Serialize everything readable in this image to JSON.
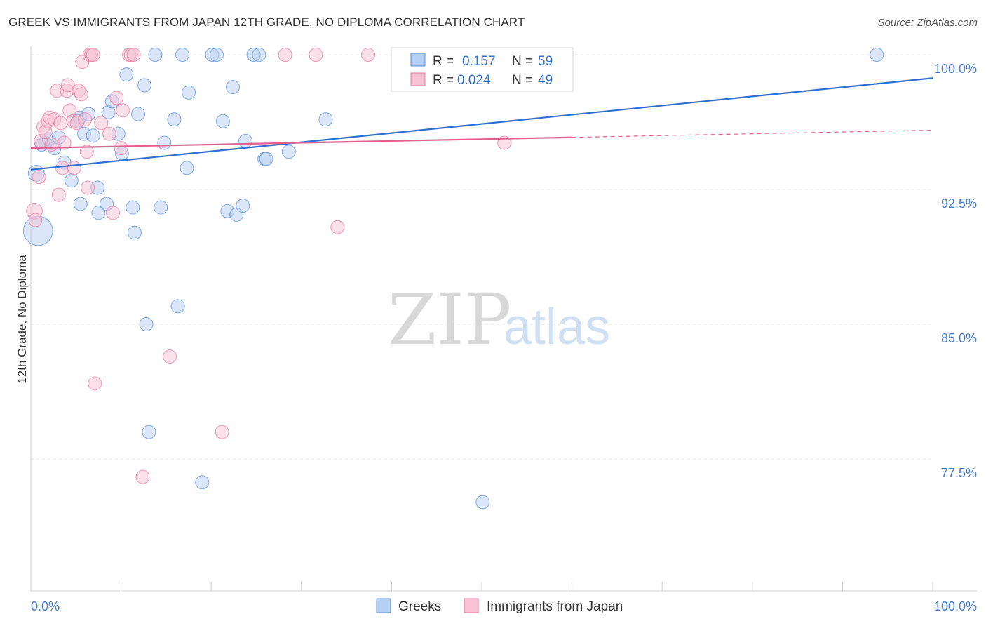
{
  "title": "GREEK VS IMMIGRANTS FROM JAPAN 12TH GRADE, NO DIPLOMA CORRELATION CHART",
  "source": "Source: ZipAtlas.com",
  "watermark": {
    "zip": "ZIP",
    "atlas": "atlas"
  },
  "colors": {
    "greeks": "#5b8fdb",
    "greeks_fill": "#b7cff2",
    "japan": "#e87aa0",
    "japan_fill": "#f6c2d4",
    "greeks_line": "#2f6fcf",
    "japan_line": "#e0608e"
  },
  "legend": {
    "r_label": "R =",
    "n_label": "N =",
    "greeks": {
      "r": "0.157",
      "n": "59"
    },
    "japan": {
      "r": "0.024",
      "n": "49"
    }
  },
  "chart_data": {
    "type": "scatter",
    "ylabel": "12th Grade, No Diploma",
    "xlim": [
      0,
      100
    ],
    "ylim": [
      71.5,
      100.7
    ],
    "x_ticks": [
      {
        "v": 0,
        "label": "0.0%"
      },
      {
        "v": 100,
        "label": "100.0%"
      }
    ],
    "y_ticks": [
      {
        "v": 100,
        "label": "100.0%"
      },
      {
        "v": 92.5,
        "label": "92.5%"
      },
      {
        "v": 85,
        "label": "85.0%"
      },
      {
        "v": 77.5,
        "label": "77.5%"
      }
    ],
    "grid": true,
    "legend_position": "top-center",
    "series": [
      {
        "name": "Greeks",
        "trend": {
          "x0": 0,
          "y0": 93.6,
          "x1": 100,
          "y1": 98.7,
          "dashed_from": null
        },
        "points": [
          [
            0.6,
            93.4,
            12
          ],
          [
            0.8,
            90.2,
            22
          ],
          [
            1.2,
            95.0,
            10
          ],
          [
            1.6,
            95.1,
            10
          ],
          [
            2.0,
            95.3,
            10
          ],
          [
            2.6,
            94.8,
            10
          ],
          [
            3.1,
            95.4,
            10
          ],
          [
            3.7,
            94.0,
            10
          ],
          [
            4.5,
            93.0,
            10
          ],
          [
            5.2,
            96.3,
            10
          ],
          [
            5.4,
            96.5,
            10
          ],
          [
            5.5,
            91.7,
            10
          ],
          [
            5.9,
            95.6,
            10
          ],
          [
            6.4,
            96.7,
            10
          ],
          [
            6.9,
            95.5,
            10
          ],
          [
            7.4,
            92.6,
            10
          ],
          [
            7.5,
            91.2,
            10
          ],
          [
            8.4,
            91.7,
            10
          ],
          [
            8.6,
            96.8,
            10
          ],
          [
            9.0,
            97.4,
            10
          ],
          [
            9.7,
            95.6,
            10
          ],
          [
            10.1,
            94.5,
            10
          ],
          [
            10.6,
            98.9,
            10
          ],
          [
            11.3,
            91.5,
            10
          ],
          [
            11.5,
            90.1,
            10
          ],
          [
            11.9,
            96.7,
            10
          ],
          [
            12.6,
            98.3,
            10
          ],
          [
            12.8,
            85.0,
            10
          ],
          [
            13.1,
            79.0,
            10
          ],
          [
            13.8,
            100.0,
            10
          ],
          [
            14.4,
            91.5,
            10
          ],
          [
            14.8,
            95.1,
            10
          ],
          [
            15.9,
            96.4,
            10
          ],
          [
            16.3,
            86.0,
            10
          ],
          [
            16.8,
            100.0,
            10
          ],
          [
            17.3,
            93.7,
            10
          ],
          [
            17.5,
            97.9,
            10
          ],
          [
            19.0,
            76.2,
            10
          ],
          [
            20.1,
            100.0,
            10
          ],
          [
            20.6,
            100.0,
            10
          ],
          [
            21.3,
            96.3,
            10
          ],
          [
            21.8,
            91.3,
            10
          ],
          [
            22.4,
            98.2,
            10
          ],
          [
            22.8,
            91.1,
            10
          ],
          [
            23.5,
            91.6,
            10
          ],
          [
            23.8,
            95.2,
            10
          ],
          [
            24.7,
            100.0,
            10
          ],
          [
            25.3,
            100.0,
            10
          ],
          [
            25.9,
            94.2,
            10
          ],
          [
            26.1,
            94.2,
            10
          ],
          [
            28.6,
            94.6,
            10
          ],
          [
            32.7,
            96.4,
            10
          ],
          [
            41.1,
            100.0,
            10
          ],
          [
            43.5,
            100.0,
            10
          ],
          [
            43.0,
            100.0,
            10
          ],
          [
            50.1,
            75.1,
            10
          ],
          [
            56.2,
            100.0,
            10
          ],
          [
            93.8,
            100.0,
            10
          ],
          [
            44.0,
            100.0,
            10
          ]
        ]
      },
      {
        "name": "Immigrants from Japan",
        "trend": {
          "x0": 0,
          "y0": 94.8,
          "x1": 100,
          "y1": 95.8,
          "dashed_from": 60
        },
        "points": [
          [
            0.4,
            91.3,
            12
          ],
          [
            0.5,
            90.8,
            10
          ],
          [
            0.9,
            93.2,
            10
          ],
          [
            1.1,
            95.2,
            10
          ],
          [
            1.4,
            96.0,
            10
          ],
          [
            1.6,
            95.7,
            10
          ],
          [
            1.9,
            96.3,
            10
          ],
          [
            2.1,
            96.5,
            10
          ],
          [
            2.3,
            95.0,
            10
          ],
          [
            2.6,
            96.4,
            10
          ],
          [
            2.9,
            98.0,
            10
          ],
          [
            3.1,
            92.2,
            10
          ],
          [
            3.3,
            96.2,
            10
          ],
          [
            3.5,
            93.7,
            10
          ],
          [
            3.7,
            95.1,
            10
          ],
          [
            4.0,
            98.0,
            10
          ],
          [
            4.1,
            98.3,
            10
          ],
          [
            4.3,
            96.9,
            10
          ],
          [
            4.7,
            96.3,
            10
          ],
          [
            4.8,
            93.7,
            10
          ],
          [
            5.1,
            96.2,
            10
          ],
          [
            5.3,
            98.0,
            10
          ],
          [
            5.6,
            97.8,
            10
          ],
          [
            5.7,
            99.6,
            10
          ],
          [
            6.0,
            96.4,
            10
          ],
          [
            6.2,
            94.6,
            10
          ],
          [
            6.3,
            92.6,
            10
          ],
          [
            6.5,
            100.0,
            10
          ],
          [
            6.7,
            100.0,
            10
          ],
          [
            6.9,
            100.0,
            10
          ],
          [
            7.1,
            81.7,
            10
          ],
          [
            7.8,
            96.2,
            10
          ],
          [
            8.7,
            95.6,
            10
          ],
          [
            9.1,
            91.2,
            10
          ],
          [
            9.5,
            97.6,
            10
          ],
          [
            10.0,
            94.8,
            10
          ],
          [
            10.2,
            96.9,
            10
          ],
          [
            10.9,
            100.0,
            10
          ],
          [
            11.1,
            100.0,
            10
          ],
          [
            11.4,
            100.0,
            10
          ],
          [
            12.4,
            76.5,
            10
          ],
          [
            15.4,
            83.2,
            10
          ],
          [
            21.2,
            79.0,
            10
          ],
          [
            28.2,
            100.0,
            10
          ],
          [
            31.6,
            100.0,
            10
          ],
          [
            34.0,
            90.4,
            10
          ],
          [
            37.4,
            100.0,
            10
          ],
          [
            52.5,
            95.1,
            10
          ],
          [
            46.0,
            100.0,
            10
          ]
        ]
      }
    ]
  },
  "bottom_legend": [
    "Greeks",
    "Immigrants from Japan"
  ]
}
